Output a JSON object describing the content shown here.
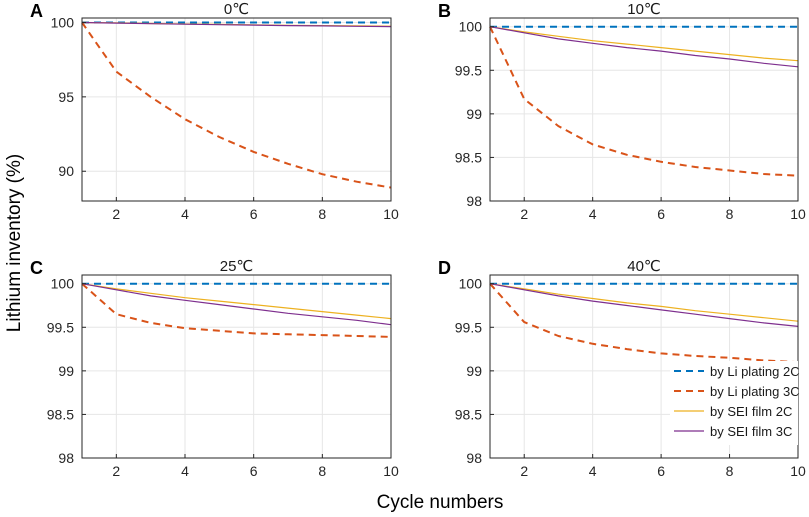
{
  "figure": {
    "ylabel": "Lithium inventory (%)",
    "xlabel": "Cycle numbers"
  },
  "colors": {
    "li2c": "#0072BD",
    "li3c": "#D95319",
    "sei2c": "#EDB120",
    "sei3c": "#7E2F8E"
  },
  "legend": {
    "entries": [
      "by Li plating 2C",
      "by Li plating 3C",
      "by SEI film 2C",
      "by SEI film 3C"
    ]
  },
  "chart_data": [
    {
      "type": "line",
      "panel": "A",
      "title": "0℃",
      "x": [
        1,
        2,
        3,
        4,
        5,
        6,
        7,
        8,
        9,
        10
      ],
      "xlim": [
        1,
        10
      ],
      "xticks": [
        2,
        4,
        6,
        8,
        10
      ],
      "ylim": [
        88,
        100.3
      ],
      "yticks": [
        90,
        95,
        100
      ],
      "ytick_labels": [
        "90",
        "95",
        "100"
      ],
      "series": [
        {
          "name": "by Li plating 2C",
          "values": [
            100,
            100,
            100,
            100,
            100,
            100,
            100,
            100,
            100,
            100
          ]
        },
        {
          "name": "by Li plating 3C",
          "values": [
            100,
            96.7,
            95.0,
            93.5,
            92.3,
            91.3,
            90.5,
            89.8,
            89.3,
            88.9
          ]
        },
        {
          "name": "by SEI film 2C",
          "values": [
            100,
            99.97,
            99.93,
            99.9,
            99.87,
            99.84,
            99.81,
            99.79,
            99.77,
            99.75
          ]
        },
        {
          "name": "by SEI film 3C",
          "values": [
            100,
            99.96,
            99.92,
            99.88,
            99.85,
            99.82,
            99.79,
            99.77,
            99.74,
            99.72
          ]
        }
      ]
    },
    {
      "type": "line",
      "panel": "B",
      "title": "10℃",
      "x": [
        1,
        2,
        3,
        4,
        5,
        6,
        7,
        8,
        9,
        10
      ],
      "xlim": [
        1,
        10
      ],
      "xticks": [
        2,
        4,
        6,
        8,
        10
      ],
      "ylim": [
        98,
        100.1
      ],
      "yticks": [
        98,
        98.5,
        99,
        99.5,
        100
      ],
      "ytick_labels": [
        "98",
        "98.5",
        "99",
        "99.5",
        "100"
      ],
      "series": [
        {
          "name": "by Li plating 2C",
          "values": [
            100,
            100,
            100,
            100,
            100,
            100,
            100,
            100,
            100,
            100
          ]
        },
        {
          "name": "by Li plating 3C",
          "values": [
            100,
            99.17,
            98.86,
            98.65,
            98.53,
            98.45,
            98.39,
            98.35,
            98.31,
            98.29
          ]
        },
        {
          "name": "by SEI film 2C",
          "values": [
            100,
            99.94,
            99.89,
            99.84,
            99.8,
            99.76,
            99.72,
            99.68,
            99.64,
            99.61
          ]
        },
        {
          "name": "by SEI film 3C",
          "values": [
            100,
            99.93,
            99.86,
            99.81,
            99.76,
            99.72,
            99.67,
            99.63,
            99.58,
            99.54
          ]
        }
      ]
    },
    {
      "type": "line",
      "panel": "C",
      "title": "25℃",
      "x": [
        1,
        2,
        3,
        4,
        5,
        6,
        7,
        8,
        9,
        10
      ],
      "xlim": [
        1,
        10
      ],
      "xticks": [
        2,
        4,
        6,
        8,
        10
      ],
      "ylim": [
        98,
        100.1
      ],
      "yticks": [
        98,
        98.5,
        99,
        99.5,
        100
      ],
      "ytick_labels": [
        "98",
        "98.5",
        "99",
        "99.5",
        "100"
      ],
      "series": [
        {
          "name": "by Li plating 2C",
          "values": [
            100,
            100,
            100,
            100,
            100,
            100,
            100,
            100,
            100,
            100
          ]
        },
        {
          "name": "by Li plating 3C",
          "values": [
            100,
            99.65,
            99.55,
            99.49,
            99.46,
            99.43,
            99.42,
            99.41,
            99.4,
            99.39
          ]
        },
        {
          "name": "by SEI film 2C",
          "values": [
            100,
            99.94,
            99.89,
            99.84,
            99.8,
            99.76,
            99.72,
            99.68,
            99.64,
            99.6
          ]
        },
        {
          "name": "by SEI film 3C",
          "values": [
            100,
            99.93,
            99.86,
            99.81,
            99.76,
            99.71,
            99.66,
            99.62,
            99.58,
            99.53
          ]
        }
      ]
    },
    {
      "type": "line",
      "panel": "D",
      "title": "40℃",
      "x": [
        1,
        2,
        3,
        4,
        5,
        6,
        7,
        8,
        9,
        10
      ],
      "xlim": [
        1,
        10
      ],
      "xticks": [
        2,
        4,
        6,
        8,
        10
      ],
      "ylim": [
        98,
        100.1
      ],
      "yticks": [
        98,
        98.5,
        99,
        99.5,
        100
      ],
      "ytick_labels": [
        "98",
        "98.5",
        "99",
        "99.5",
        "100"
      ],
      "series": [
        {
          "name": "by Li plating 2C",
          "values": [
            100,
            100,
            100,
            100,
            100,
            100,
            100,
            100,
            100,
            100
          ]
        },
        {
          "name": "by Li plating 3C",
          "values": [
            100,
            99.56,
            99.4,
            99.31,
            99.25,
            99.2,
            99.17,
            99.15,
            99.12,
            99.1
          ]
        },
        {
          "name": "by SEI film 2C",
          "values": [
            100,
            99.94,
            99.88,
            99.83,
            99.78,
            99.74,
            99.69,
            99.65,
            99.61,
            99.57
          ]
        },
        {
          "name": "by SEI film 3C",
          "values": [
            100,
            99.93,
            99.86,
            99.8,
            99.75,
            99.7,
            99.65,
            99.6,
            99.55,
            99.51
          ]
        }
      ]
    }
  ]
}
